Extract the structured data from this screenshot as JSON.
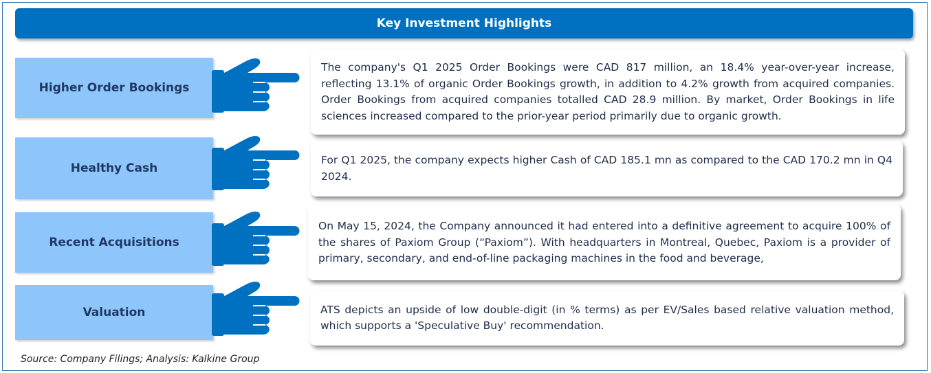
{
  "header": {
    "title": "Key Investment Highlights"
  },
  "rows": [
    {
      "label": "Higher Order Bookings",
      "text": "The company's Q1 2025 Order Bookings were CAD 817 million, an 18.4% year-over-year increase, reflecting 13.1% of organic Order Bookings growth, in addition to 4.2% growth from acquired companies. Order Bookings from acquired companies totalled CAD 28.9 million. By market, Order Bookings in life sciences increased compared to the prior-year period primarily due to organic growth."
    },
    {
      "label": "Healthy Cash",
      "text": "For Q1 2025, the company expects higher Cash of CAD 185.1 mn as compared to the CAD 170.2 mn in Q4 2024."
    },
    {
      "label": "Recent Acquisitions",
      "text": "On May 15, 2024, the Company announced it had entered into a definitive agreement to acquire 100% of the shares of Paxiom Group (“Paxiom”). With headquarters in Montreal, Quebec, Paxiom is a provider of primary, secondary, and end-of-line packaging machines in the food and beverage,"
    },
    {
      "label": "Valuation",
      "text": "ATS depicts an upside of low double-digit (in % terms) as per EV/Sales based relative valuation method, which supports a 'Speculative Buy' recommendation."
    }
  ],
  "source": "Source: Company Filings; Analysis: Kalkine Group"
}
